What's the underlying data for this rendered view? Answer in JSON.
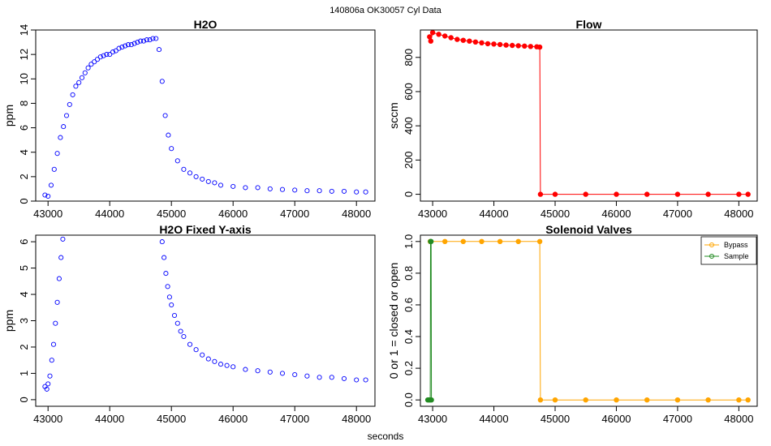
{
  "figure": {
    "suptitle": "140806a    OK30057   Cyl Data",
    "xlabel": "seconds"
  },
  "colors": {
    "h2o": "#0000ff",
    "flow": "#ff0000",
    "bypass": "#ffa500",
    "sample": "#228b22"
  },
  "chart_data": [
    {
      "id": "h2o",
      "type": "scatter",
      "title": "H2O",
      "xlabel": "",
      "ylabel": "ppm",
      "xlim": [
        42800,
        48300
      ],
      "ylim": [
        0,
        14
      ],
      "xticks": [
        43000,
        44000,
        45000,
        46000,
        47000,
        48000
      ],
      "yticks": [
        0,
        2,
        4,
        6,
        8,
        10,
        12,
        14
      ],
      "marker": "open-circle",
      "series": [
        {
          "color": "#0000ff",
          "points": [
            [
              42950,
              0.5
            ],
            [
              43000,
              0.4
            ],
            [
              43050,
              1.3
            ],
            [
              43100,
              2.6
            ],
            [
              43150,
              3.9
            ],
            [
              43200,
              5.2
            ],
            [
              43250,
              6.1
            ],
            [
              43300,
              7.0
            ],
            [
              43350,
              7.9
            ],
            [
              43400,
              8.7
            ],
            [
              43450,
              9.4
            ],
            [
              43500,
              9.7
            ],
            [
              43550,
              10.1
            ],
            [
              43600,
              10.5
            ],
            [
              43650,
              10.9
            ],
            [
              43700,
              11.2
            ],
            [
              43750,
              11.4
            ],
            [
              43800,
              11.6
            ],
            [
              43850,
              11.8
            ],
            [
              43900,
              11.9
            ],
            [
              43950,
              12.0
            ],
            [
              44000,
              12.0
            ],
            [
              44050,
              12.2
            ],
            [
              44100,
              12.3
            ],
            [
              44150,
              12.5
            ],
            [
              44200,
              12.6
            ],
            [
              44250,
              12.7
            ],
            [
              44300,
              12.8
            ],
            [
              44350,
              12.8
            ],
            [
              44400,
              12.9
            ],
            [
              44450,
              13.0
            ],
            [
              44500,
              13.1
            ],
            [
              44550,
              13.1
            ],
            [
              44600,
              13.2
            ],
            [
              44650,
              13.2
            ],
            [
              44700,
              13.3
            ],
            [
              44750,
              13.3
            ],
            [
              44800,
              12.4
            ],
            [
              44850,
              9.8
            ],
            [
              44900,
              7.0
            ],
            [
              44950,
              5.4
            ],
            [
              45000,
              4.3
            ],
            [
              45100,
              3.3
            ],
            [
              45200,
              2.6
            ],
            [
              45300,
              2.3
            ],
            [
              45400,
              2.0
            ],
            [
              45500,
              1.8
            ],
            [
              45600,
              1.6
            ],
            [
              45700,
              1.5
            ],
            [
              45800,
              1.3
            ],
            [
              46000,
              1.2
            ],
            [
              46200,
              1.1
            ],
            [
              46400,
              1.1
            ],
            [
              46600,
              1.0
            ],
            [
              46800,
              0.95
            ],
            [
              47000,
              0.9
            ],
            [
              47200,
              0.85
            ],
            [
              47400,
              0.85
            ],
            [
              47600,
              0.8
            ],
            [
              47800,
              0.8
            ],
            [
              48000,
              0.75
            ],
            [
              48150,
              0.75
            ]
          ]
        }
      ]
    },
    {
      "id": "flow",
      "type": "line",
      "title": "Flow",
      "xlabel": "",
      "ylabel": "sccm",
      "xlim": [
        42800,
        48300
      ],
      "ylim": [
        -40,
        960
      ],
      "xticks": [
        43000,
        44000,
        45000,
        46000,
        47000,
        48000
      ],
      "yticks": [
        0,
        200,
        400,
        600,
        800
      ],
      "marker": "filled-circle",
      "series": [
        {
          "color": "#ff0000",
          "points": [
            [
              42950,
              920
            ],
            [
              42970,
              895
            ],
            [
              43000,
              945
            ],
            [
              43100,
              935
            ],
            [
              43200,
              925
            ],
            [
              43300,
              915
            ],
            [
              43400,
              905
            ],
            [
              43500,
              900
            ],
            [
              43600,
              895
            ],
            [
              43700,
              890
            ],
            [
              43800,
              885
            ],
            [
              43900,
              880
            ],
            [
              44000,
              878
            ],
            [
              44100,
              875
            ],
            [
              44200,
              872
            ],
            [
              44300,
              870
            ],
            [
              44400,
              868
            ],
            [
              44500,
              866
            ],
            [
              44600,
              864
            ],
            [
              44700,
              862
            ],
            [
              44750,
              860
            ],
            [
              44760,
              0
            ],
            [
              45000,
              0
            ],
            [
              45500,
              0
            ],
            [
              46000,
              0
            ],
            [
              46500,
              0
            ],
            [
              47000,
              0
            ],
            [
              47500,
              0
            ],
            [
              48000,
              0
            ],
            [
              48150,
              0
            ]
          ]
        }
      ]
    },
    {
      "id": "h2o-fixed",
      "type": "scatter",
      "title": "H2O Fixed Y-axis",
      "xlabel": "",
      "ylabel": "ppm",
      "xlim": [
        42800,
        48300
      ],
      "ylim": [
        -0.25,
        6.25
      ],
      "xticks": [
        43000,
        44000,
        45000,
        46000,
        47000,
        48000
      ],
      "yticks": [
        0,
        1,
        2,
        3,
        4,
        5,
        6
      ],
      "marker": "open-circle",
      "clip": true,
      "series": [
        {
          "color": "#0000ff",
          "points": [
            [
              42950,
              0.5
            ],
            [
              42980,
              0.4
            ],
            [
              43000,
              0.6
            ],
            [
              43030,
              0.9
            ],
            [
              43060,
              1.5
            ],
            [
              43090,
              2.1
            ],
            [
              43120,
              2.9
            ],
            [
              43150,
              3.7
            ],
            [
              43180,
              4.6
            ],
            [
              43210,
              5.4
            ],
            [
              43240,
              6.1
            ],
            [
              44850,
              6.0
            ],
            [
              44880,
              5.4
            ],
            [
              44910,
              4.8
            ],
            [
              44940,
              4.3
            ],
            [
              44970,
              3.9
            ],
            [
              45000,
              3.6
            ],
            [
              45050,
              3.2
            ],
            [
              45100,
              2.9
            ],
            [
              45150,
              2.6
            ],
            [
              45200,
              2.4
            ],
            [
              45300,
              2.1
            ],
            [
              45400,
              1.9
            ],
            [
              45500,
              1.7
            ],
            [
              45600,
              1.55
            ],
            [
              45700,
              1.45
            ],
            [
              45800,
              1.35
            ],
            [
              45900,
              1.3
            ],
            [
              46000,
              1.25
            ],
            [
              46200,
              1.15
            ],
            [
              46400,
              1.1
            ],
            [
              46600,
              1.05
            ],
            [
              46800,
              1.0
            ],
            [
              47000,
              0.95
            ],
            [
              47200,
              0.9
            ],
            [
              47400,
              0.85
            ],
            [
              47600,
              0.85
            ],
            [
              47800,
              0.8
            ],
            [
              48000,
              0.75
            ],
            [
              48150,
              0.75
            ]
          ]
        }
      ]
    },
    {
      "id": "valves",
      "type": "line",
      "title": "Solenoid Valves",
      "xlabel": "",
      "ylabel": "0 or 1 = closed or open",
      "xlim": [
        42800,
        48300
      ],
      "ylim": [
        -0.04,
        1.04
      ],
      "xticks": [
        43000,
        44000,
        45000,
        46000,
        47000,
        48000
      ],
      "yticks": [
        0,
        0.2,
        0.4,
        0.6,
        0.8,
        1.0
      ],
      "ytick_labels": [
        "0.0",
        "0.2",
        "0.4",
        "0.6",
        "0.8",
        "1.0"
      ],
      "legend": "top-right",
      "marker": "filled-circle",
      "series": [
        {
          "name": "Bypass",
          "color": "#ffa500",
          "points": [
            [
              42960,
              1
            ],
            [
              43200,
              1
            ],
            [
              43500,
              1
            ],
            [
              43800,
              1
            ],
            [
              44100,
              1
            ],
            [
              44400,
              1
            ],
            [
              44750,
              1
            ],
            [
              44760,
              0
            ],
            [
              45000,
              0
            ],
            [
              45500,
              0
            ],
            [
              46000,
              0
            ],
            [
              46500,
              0
            ],
            [
              47000,
              0
            ],
            [
              47500,
              0
            ],
            [
              48000,
              0
            ],
            [
              48150,
              0
            ]
          ]
        },
        {
          "name": "Sample",
          "color": "#228b22",
          "points": [
            [
              42920,
              0
            ],
            [
              42940,
              0
            ],
            [
              42960,
              0
            ],
            [
              42965,
              1
            ],
            [
              42975,
              1
            ],
            [
              42980,
              0
            ]
          ]
        }
      ]
    }
  ]
}
